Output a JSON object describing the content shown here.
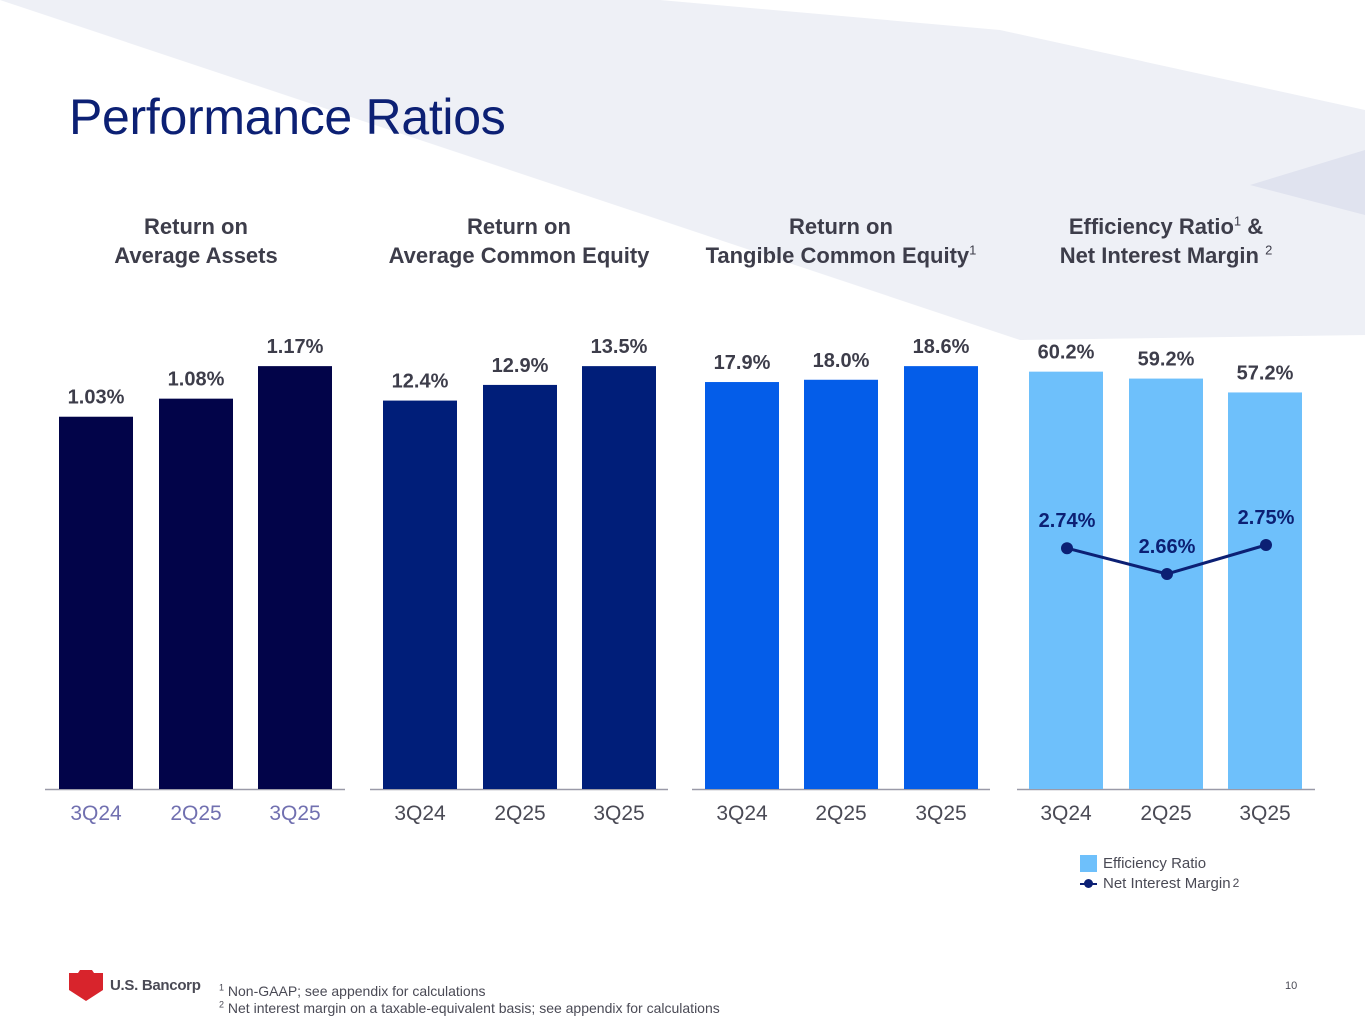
{
  "page": {
    "title": "Performance Ratios",
    "page_number": "10"
  },
  "colors": {
    "title": "#0c2074",
    "roa": "#020449",
    "roe": "#001e79",
    "rotce": "#045de9",
    "efficiency": "#6ec0fb",
    "nim_line": "#0c2074",
    "label": "#3d3d4a",
    "axis_label": "#4a4a55",
    "axis_label_muted": "#7170b0"
  },
  "chart_data": [
    {
      "type": "bar",
      "id": "roa",
      "title_line1": "Return on",
      "title_line2": "Average Assets",
      "categories": [
        "3Q24",
        "2Q25",
        "3Q25"
      ],
      "values": [
        1.03,
        1.08,
        1.17
      ],
      "labels": [
        "1.03%",
        "1.08%",
        "1.17%"
      ],
      "unit": "%",
      "ylim": [
        0,
        1.25
      ],
      "grid": false
    },
    {
      "type": "bar",
      "id": "roe",
      "title_line1": "Return on",
      "title_line2": "Average Common Equity",
      "categories": [
        "3Q24",
        "2Q25",
        "3Q25"
      ],
      "values": [
        12.4,
        12.9,
        13.5
      ],
      "labels": [
        "12.4%",
        "12.9%",
        "13.5%"
      ],
      "unit": "%",
      "ylim": [
        0,
        14.5
      ],
      "grid": false
    },
    {
      "type": "bar",
      "id": "rotce",
      "title_line1": "Return on",
      "title_line2": "Tangible Common Equity",
      "title_sup": "1",
      "categories": [
        "3Q24",
        "2Q25",
        "3Q25"
      ],
      "values": [
        17.9,
        18.0,
        18.6
      ],
      "labels": [
        "17.9%",
        "18.0%",
        "18.6%"
      ],
      "unit": "%",
      "ylim": [
        0,
        21
      ],
      "grid": false
    },
    {
      "type": "bar",
      "id": "efficiency_nim",
      "title_line1": "Efficiency Ratio",
      "title_line1_sup": "1",
      "title_line1_suffix": "&",
      "title_line2": "Net Interest Margin",
      "title_line2_sup": "2",
      "categories": [
        "3Q24",
        "2Q25",
        "3Q25"
      ],
      "series": [
        {
          "name": "Efficiency Ratio",
          "kind": "bar",
          "values": [
            60.2,
            59.2,
            57.2
          ],
          "labels": [
            "60.2%",
            "59.2%",
            "57.2%"
          ]
        },
        {
          "name": "Net Interest Margin",
          "kind": "line",
          "values": [
            2.74,
            2.66,
            2.75
          ],
          "labels": [
            "2.74%",
            "2.66%",
            "2.75%"
          ]
        }
      ],
      "legend": {
        "items": [
          {
            "label": "Efficiency Ratio"
          },
          {
            "label": "Net Interest Margin",
            "sup": "2"
          }
        ],
        "position": "bottom"
      },
      "grid": false
    }
  ],
  "footer": {
    "logo_text": "U.S. Bancorp",
    "footnote1_mark": "1",
    "footnote1_text": "Non-GAAP; see appendix for calculations",
    "footnote2_mark": "2",
    "footnote2_text": "Net interest margin on a taxable-equivalent basis; see appendix for calculations"
  }
}
